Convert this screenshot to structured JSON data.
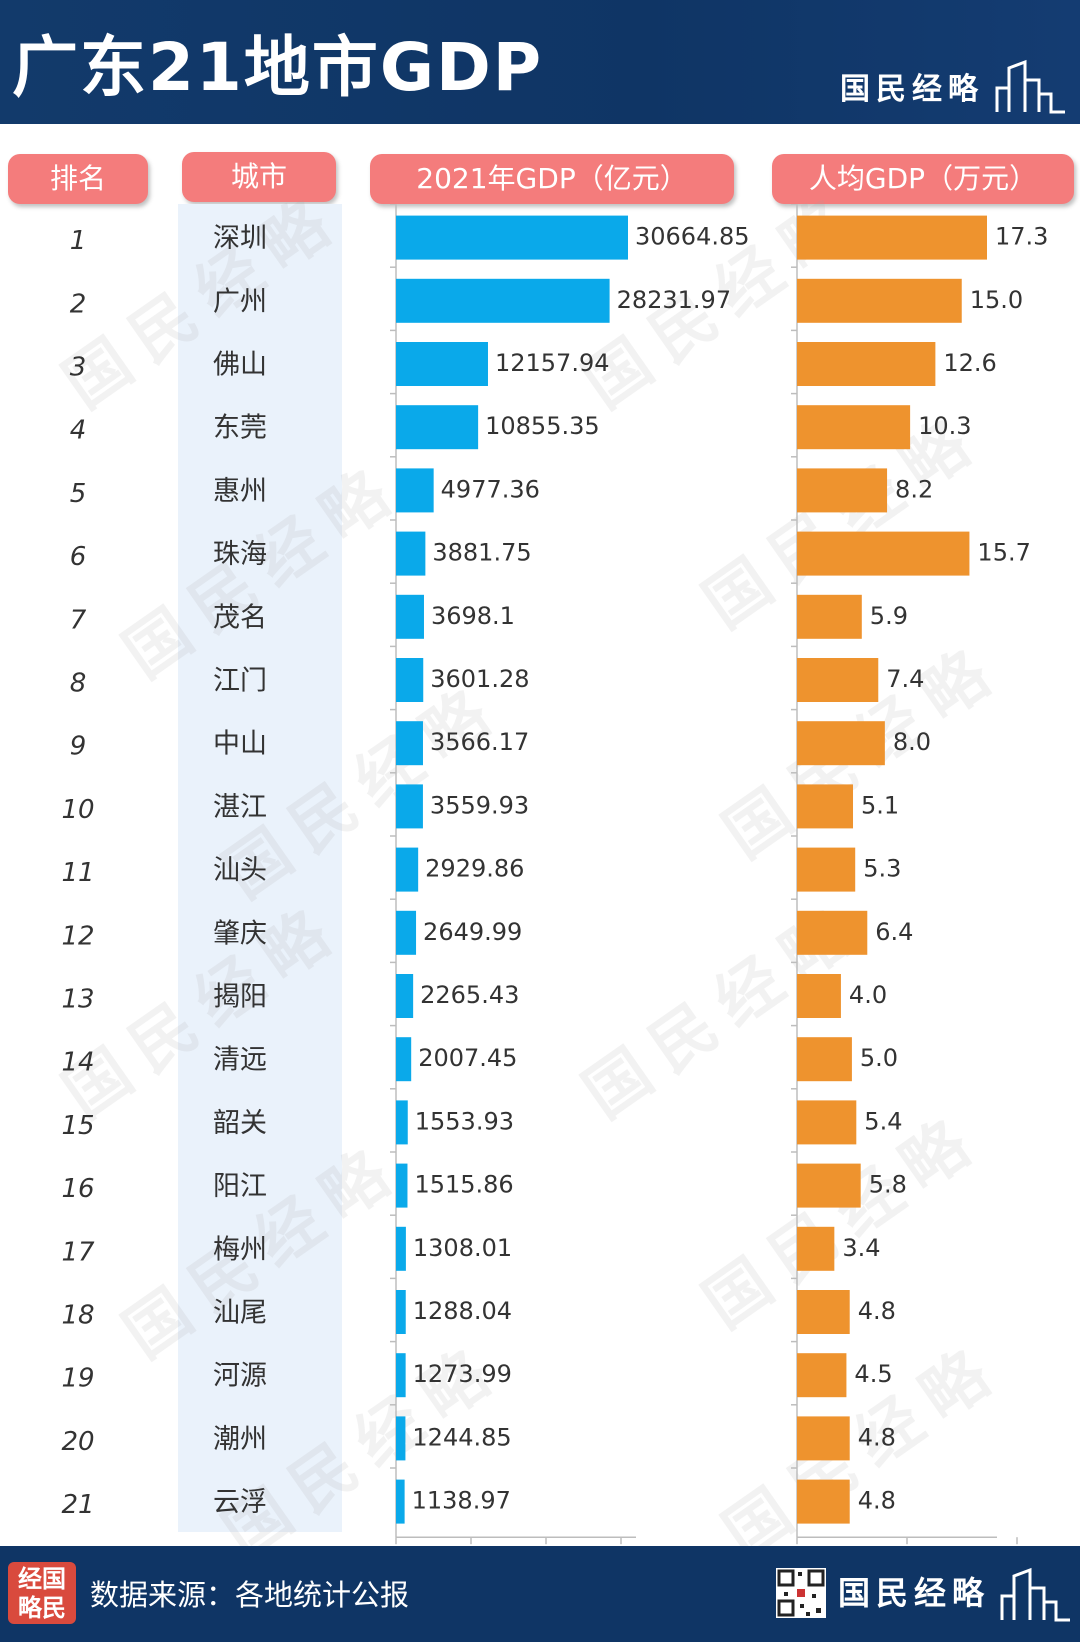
{
  "title": "广东21地市GDP",
  "brand": "国民经略",
  "logo_text": "经国略民",
  "watermark": "国民经略",
  "headers": {
    "rank": "排名",
    "city": "城市",
    "gdp": "2021年GDP（亿元）",
    "per_capita": "人均GDP（万元）"
  },
  "footer": {
    "source": "数据来源：各地统计公报"
  },
  "colors": {
    "header_bg": "#123a6b",
    "pill": "#f47c7c",
    "gdp_bar": "#0aa9ea",
    "per_capita_bar": "#ee932e",
    "city_band": "#eaf2fb"
  },
  "chart_data": {
    "type": "bar",
    "orientation": "horizontal",
    "title": "广东21地市GDP",
    "categories": [
      "深圳",
      "广州",
      "佛山",
      "东莞",
      "惠州",
      "珠海",
      "茂名",
      "江门",
      "中山",
      "湛江",
      "汕头",
      "肇庆",
      "揭阳",
      "清远",
      "韶关",
      "阳江",
      "梅州",
      "汕尾",
      "河源",
      "潮州",
      "云浮"
    ],
    "ranks": [
      "1",
      "2",
      "3",
      "4",
      "5",
      "6",
      "7",
      "8",
      "9",
      "10",
      "11",
      "12",
      "13",
      "14",
      "15",
      "16",
      "17",
      "18",
      "19",
      "20",
      "21"
    ],
    "series": [
      {
        "name": "2021年GDP（亿元）",
        "values": [
          30664.85,
          28231.97,
          12157.94,
          10855.35,
          4977.36,
          3881.75,
          3698.1,
          3601.28,
          3566.17,
          3559.93,
          2929.86,
          2649.99,
          2265.43,
          2007.45,
          1553.93,
          1515.86,
          1308.01,
          1288.04,
          1273.99,
          1244.85,
          1138.97
        ],
        "labels": [
          "30664.85",
          "28231.97",
          "12157.94",
          "10855.35",
          "4977.36",
          "3881.75",
          "3698.1",
          "3601.28",
          "3566.17",
          "3559.93",
          "2929.86",
          "2649.99",
          "2265.43",
          "2007.45",
          "1553.93",
          "1515.86",
          "1308.01",
          "1288.04",
          "1273.99",
          "1244.85",
          "1138.97"
        ],
        "xlim": [
          0,
          30664.85
        ]
      },
      {
        "name": "人均GDP（万元）",
        "values": [
          17.3,
          15.0,
          12.6,
          10.3,
          8.2,
          15.7,
          5.9,
          7.4,
          8.0,
          5.1,
          5.3,
          6.4,
          4.0,
          5.0,
          5.4,
          5.8,
          3.4,
          4.8,
          4.5,
          4.8,
          4.8
        ],
        "labels": [
          "17.3",
          "15.0",
          "12.6",
          "10.3",
          "8.2",
          "15.7",
          "5.9",
          "7.4",
          "8.0",
          "5.1",
          "5.3",
          "6.4",
          "4.0",
          "5.0",
          "5.4",
          "5.8",
          "3.4",
          "4.8",
          "4.5",
          "4.8",
          "4.8"
        ],
        "xlim": [
          0,
          17.3
        ]
      }
    ]
  }
}
